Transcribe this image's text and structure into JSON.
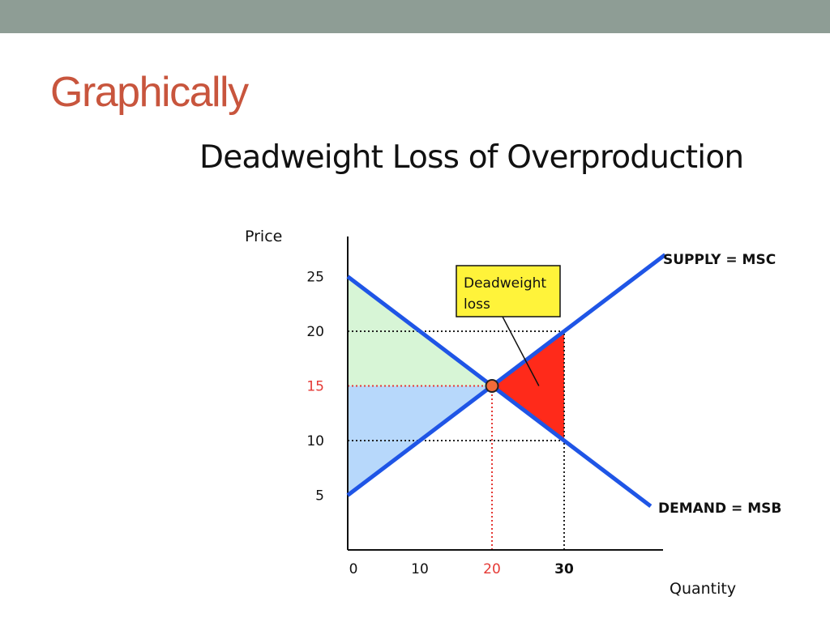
{
  "header": {
    "title": "Graphically"
  },
  "chart_data": {
    "type": "line",
    "title": "Deadweight Loss of Overproduction",
    "xlabel": "Quantity",
    "ylabel": "Price",
    "xlim": [
      0,
      45
    ],
    "ylim": [
      0,
      27
    ],
    "x_ticks": [
      {
        "value": 0,
        "label": "0",
        "color": "#111111"
      },
      {
        "value": 10,
        "label": "10",
        "color": "#111111"
      },
      {
        "value": 20,
        "label": "20",
        "color": "#e53935"
      },
      {
        "value": 30,
        "label": "30",
        "color": "#111111"
      }
    ],
    "y_ticks": [
      {
        "value": 5,
        "label": "5",
        "color": "#111111"
      },
      {
        "value": 10,
        "label": "10",
        "color": "#111111"
      },
      {
        "value": 15,
        "label": "15",
        "color": "#e53935"
      },
      {
        "value": 20,
        "label": "20",
        "color": "#111111"
      },
      {
        "value": 25,
        "label": "25",
        "color": "#111111"
      }
    ],
    "series": [
      {
        "name": "SUPPLY = MSC",
        "x": [
          0,
          44
        ],
        "y": [
          5,
          27
        ],
        "color": "#1f55e6"
      },
      {
        "name": "DEMAND = MSB",
        "x": [
          0,
          42
        ],
        "y": [
          25,
          4
        ],
        "color": "#1f55e6"
      }
    ],
    "equilibrium": {
      "x": 20,
      "y": 15,
      "color": "#f26b3a"
    },
    "regions": [
      {
        "name": "consumer-surplus",
        "points": [
          [
            0,
            25
          ],
          [
            20,
            15
          ],
          [
            0,
            15
          ]
        ],
        "color": "#d7f5d6"
      },
      {
        "name": "producer-surplus",
        "points": [
          [
            0,
            15
          ],
          [
            20,
            15
          ],
          [
            0,
            5
          ]
        ],
        "color": "#b7d8fb"
      },
      {
        "name": "deadweight-loss",
        "points": [
          [
            20,
            15
          ],
          [
            30,
            20
          ],
          [
            30,
            10
          ]
        ],
        "color": "#ff2a1a"
      }
    ],
    "reference_lines": [
      {
        "name": "price-20",
        "from": [
          0,
          20
        ],
        "to": [
          30,
          20
        ],
        "color": "#222222"
      },
      {
        "name": "price-10",
        "from": [
          0,
          10
        ],
        "to": [
          30,
          10
        ],
        "color": "#222222"
      },
      {
        "name": "price-15",
        "from": [
          0,
          15
        ],
        "to": [
          20,
          15
        ],
        "color": "#e53935"
      },
      {
        "name": "quantity-20",
        "from": [
          20,
          0
        ],
        "to": [
          20,
          15
        ],
        "color": "#e53935"
      },
      {
        "name": "quantity-30",
        "from": [
          30,
          0
        ],
        "to": [
          30,
          20
        ],
        "color": "#222222"
      }
    ],
    "annotation": {
      "text_line1": "Deadweight",
      "text_line2": "loss",
      "fill": "#fff33a",
      "points_to": [
        26.5,
        15
      ]
    },
    "grid": false
  }
}
